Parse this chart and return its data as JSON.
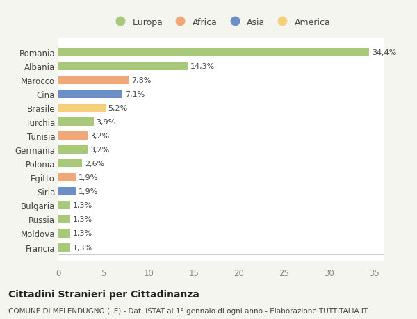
{
  "categories": [
    "Francia",
    "Moldova",
    "Russia",
    "Bulgaria",
    "Siria",
    "Egitto",
    "Polonia",
    "Germania",
    "Tunisia",
    "Turchia",
    "Brasile",
    "Cina",
    "Marocco",
    "Albania",
    "Romania"
  ],
  "values": [
    1.3,
    1.3,
    1.3,
    1.3,
    1.9,
    1.9,
    2.6,
    3.2,
    3.2,
    3.9,
    5.2,
    7.1,
    7.8,
    14.3,
    34.4
  ],
  "colors": [
    "#a8c87a",
    "#a8c87a",
    "#a8c87a",
    "#a8c87a",
    "#6b8ec7",
    "#f0a878",
    "#a8c87a",
    "#a8c87a",
    "#f0a878",
    "#a8c87a",
    "#f5d07a",
    "#6b8ec7",
    "#f0a878",
    "#a8c87a",
    "#a8c87a"
  ],
  "labels": [
    "1,3%",
    "1,3%",
    "1,3%",
    "1,3%",
    "1,9%",
    "1,9%",
    "2,6%",
    "3,2%",
    "3,2%",
    "3,9%",
    "5,2%",
    "7,1%",
    "7,8%",
    "14,3%",
    "34,4%"
  ],
  "legend_labels": [
    "Europa",
    "Africa",
    "Asia",
    "America"
  ],
  "legend_colors": [
    "#a8c87a",
    "#f0a878",
    "#6b8ec7",
    "#f5d07a"
  ],
  "title": "Cittadini Stranieri per Cittadinanza",
  "subtitle": "COMUNE DI MELENDUGNO (LE) - Dati ISTAT al 1° gennaio di ogni anno - Elaborazione TUTTITALIA.IT",
  "xlim": [
    0,
    36
  ],
  "xticks": [
    0,
    5,
    10,
    15,
    20,
    25,
    30,
    35
  ],
  "background_color": "#f5f5f0",
  "bar_background": "#ffffff",
  "grid_color": "#ffffff"
}
